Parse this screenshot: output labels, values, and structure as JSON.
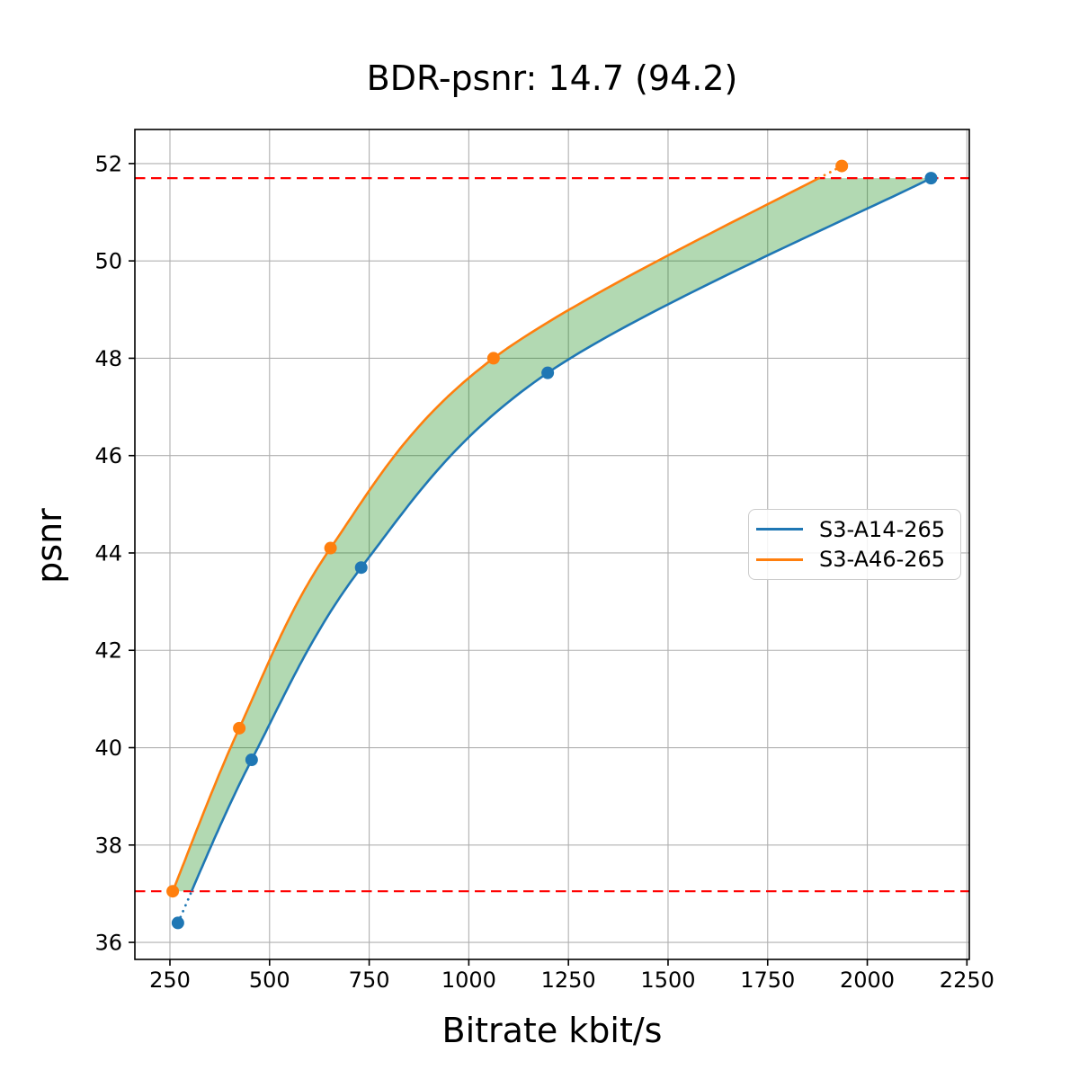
{
  "figure": {
    "title": "BDR-psnr: 14.7 (94.2)",
    "xlabel": "Bitrate kbit/s",
    "ylabel": "psnr"
  },
  "legend": {
    "entries": [
      {
        "label": "S3-A14-265",
        "color": "#1f77b4"
      },
      {
        "label": "S3-A46-265",
        "color": "#ff7f0e"
      }
    ]
  },
  "chart_data": {
    "type": "line",
    "title": "BDR-psnr: 14.7 (94.2)",
    "xlabel": "Bitrate kbit/s",
    "ylabel": "psnr",
    "xlim": [
      162,
      2256
    ],
    "ylim": [
      35.65,
      52.7
    ],
    "xticks": [
      250,
      500,
      750,
      1000,
      1250,
      1500,
      1750,
      2000,
      2250
    ],
    "yticks": [
      36,
      38,
      40,
      42,
      44,
      46,
      48,
      50,
      52
    ],
    "grid": true,
    "grid_color": "#b0b0b0",
    "legend_position": "center-right",
    "series": [
      {
        "name": "S3-A14-265",
        "color": "#1f77b4",
        "marker": "circle",
        "x": [
          270,
          455,
          730,
          1198,
          2160
        ],
        "y": [
          36.4,
          39.75,
          43.7,
          47.7,
          51.7
        ]
      },
      {
        "name": "S3-A46-265",
        "color": "#ff7f0e",
        "marker": "circle",
        "x": [
          257,
          424,
          653,
          1062,
          1936
        ],
        "y": [
          37.05,
          40.4,
          44.1,
          48.0,
          51.95
        ]
      }
    ],
    "overlap_band": {
      "y_low": 37.05,
      "y_high": 51.7,
      "line_color": "#ff0000",
      "line_style": "dashed",
      "fill_color": "#008000",
      "fill_opacity": 0.3
    },
    "out_of_band_segments_style": "dotted"
  }
}
